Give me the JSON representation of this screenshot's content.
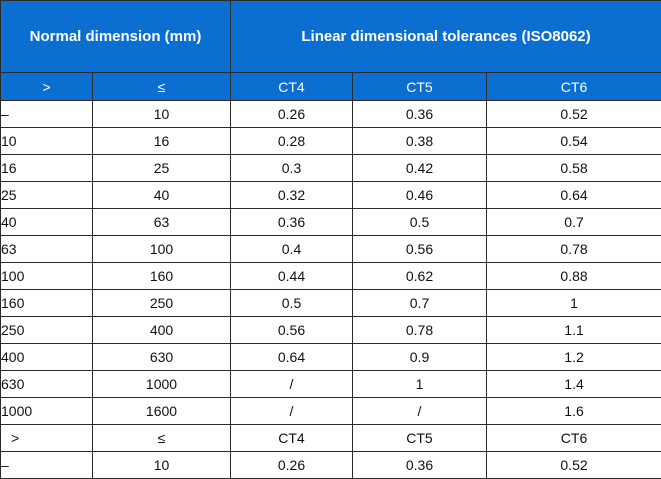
{
  "colors": {
    "header_bg": "#0a6fd0",
    "header_text": "#ffffff",
    "border": "#2a2a2a",
    "cell_text": "#111111"
  },
  "header": {
    "nominal_label": "Normal dimension (mm)",
    "tolerances_label": "Linear dimensional tolerances (ISO8062)",
    "sub": {
      "gt": ">",
      "le": "≤",
      "ct4": "CT4",
      "ct5": "CT5",
      "ct6": "CT6"
    }
  },
  "rows": [
    [
      "–",
      "10",
      "0.26",
      "0.36",
      "0.52"
    ],
    [
      "10",
      "16",
      "0.28",
      "0.38",
      "0.54"
    ],
    [
      "16",
      "25",
      "0.3",
      "0.42",
      "0.58"
    ],
    [
      "25",
      "40",
      "0.32",
      "0.46",
      "0.64"
    ],
    [
      "40",
      "63",
      "0.36",
      "0.5",
      "0.7"
    ],
    [
      "63",
      "100",
      "0.4",
      "0.56",
      "0.78"
    ],
    [
      "100",
      "160",
      "0.44",
      "0.62",
      "0.88"
    ],
    [
      "160",
      "250",
      "0.5",
      "0.7",
      "1"
    ],
    [
      "250",
      "400",
      "0.56",
      "0.78",
      "1.1"
    ],
    [
      "400",
      "630",
      "0.64",
      "0.9",
      "1.2"
    ],
    [
      "630",
      "1000",
      "/",
      "1",
      "1.4"
    ],
    [
      "1000",
      "1600",
      "/",
      "/",
      "1.6"
    ],
    [
      ">",
      "≤",
      "CT4",
      "CT5",
      "CT6"
    ],
    [
      "–",
      "10",
      "0.26",
      "0.36",
      "0.52"
    ]
  ]
}
